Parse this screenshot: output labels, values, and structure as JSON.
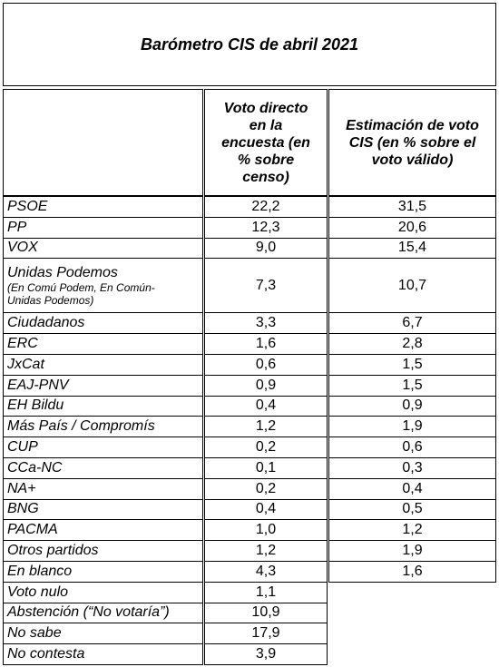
{
  "title": "Barómetro CIS de abril 2021",
  "table": {
    "headers": [
      "Voto directo en la encuesta (en % sobre censo)",
      "Estimación de voto CIS (en % sobre el voto válido)"
    ],
    "rows": [
      {
        "name": "PSOE",
        "direct": "22,2",
        "estimate": "31,5"
      },
      {
        "name": "PP",
        "direct": "12,3",
        "estimate": "20,6"
      },
      {
        "name": "VOX",
        "direct": "9,0",
        "estimate": "15,4"
      },
      {
        "name": "Unidas Podemos",
        "note": "(En Comú Podem, En Común-Unidas Podemos)",
        "direct": "7,3",
        "estimate": "10,7"
      },
      {
        "name": "Ciudadanos",
        "direct": "3,3",
        "estimate": "6,7"
      },
      {
        "name": "ERC",
        "direct": "1,6",
        "estimate": "2,8"
      },
      {
        "name": "JxCat",
        "direct": "0,6",
        "estimate": "1,5"
      },
      {
        "name": "EAJ-PNV",
        "direct": "0,9",
        "estimate": "1,5"
      },
      {
        "name": "EH Bildu",
        "direct": "0,4",
        "estimate": "0,9"
      },
      {
        "name": "Más País / Compromís",
        "direct": "1,2",
        "estimate": "1,9"
      },
      {
        "name": "CUP",
        "direct": "0,2",
        "estimate": "0,6"
      },
      {
        "name": "CCa-NC",
        "direct": "0,1",
        "estimate": "0,3"
      },
      {
        "name": "NA+",
        "direct": "0,2",
        "estimate": "0,4"
      },
      {
        "name": "BNG",
        "direct": "0,4",
        "estimate": "0,5"
      },
      {
        "name": "PACMA",
        "direct": "1,0",
        "estimate": "1,2"
      },
      {
        "name": "Otros partidos",
        "direct": "1,2",
        "estimate": "1,9"
      },
      {
        "name": "En blanco",
        "direct": "4,3",
        "estimate": "1,6"
      },
      {
        "name": "Voto nulo",
        "direct": "1,1"
      },
      {
        "name": "Abstención (“No votaría”)",
        "direct": "10,9"
      },
      {
        "name": "No sabe",
        "direct": "17,9"
      },
      {
        "name": "No contesta",
        "direct": "3,9"
      }
    ]
  }
}
